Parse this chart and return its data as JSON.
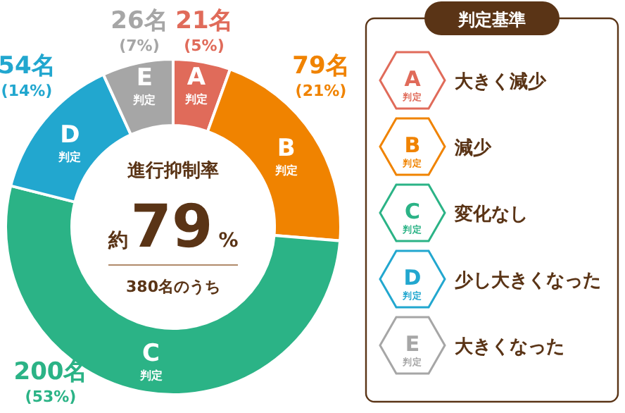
{
  "chart_data": {
    "type": "donut",
    "title": "進行抑制率",
    "categories": [
      "A判定",
      "B判定",
      "C判定",
      "D判定",
      "E判定"
    ],
    "values": [
      21,
      79,
      200,
      54,
      26
    ],
    "colors": [
      "#e06b5a",
      "#f08300",
      "#2bb386",
      "#22a7cf",
      "#a6a6a6"
    ],
    "value_labels": [
      "21名 (5%)",
      "79名 (21%)",
      "200名 (53%)",
      "54名 (14%)",
      "26名 (7%)"
    ],
    "legend_title": "判定基準",
    "annotations": [
      "約79%",
      "380名のうち",
      "大きく減少",
      "減少",
      "変化なし",
      "少し大きくなった",
      "大きくなった"
    ]
  }
}
